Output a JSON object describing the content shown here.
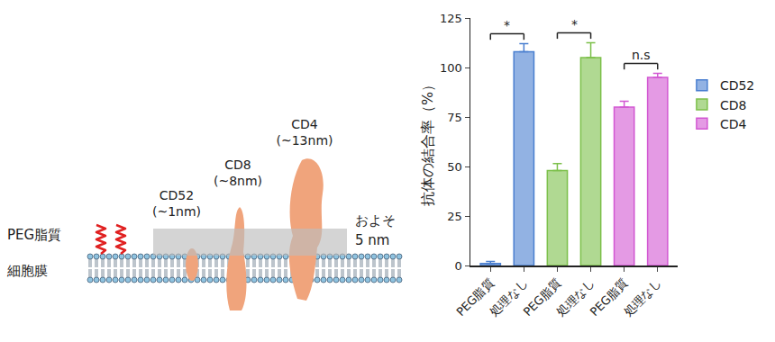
{
  "diagram": {
    "peg_label": "PEG脂質",
    "membrane_label": "細胞膜",
    "band_label": [
      "およそ",
      "5 nm"
    ],
    "proteins": [
      {
        "name": "CD52",
        "size": "(~1nm)"
      },
      {
        "name": "CD8",
        "size": "(~8nm)"
      },
      {
        "name": "CD4",
        "size": "(~13nm)"
      }
    ]
  },
  "chart_data": {
    "type": "bar",
    "categories": [
      "PEG脂質",
      "処理なし",
      "PEG脂質",
      "処理なし",
      "PEG脂質",
      "処理なし"
    ],
    "y_label": "抗体の結合率（%）",
    "ylim": [
      0,
      125
    ],
    "yticks": [
      0,
      25,
      50,
      75,
      100,
      125
    ],
    "grid": false,
    "legend": "right",
    "series": [
      {
        "name": "CD52",
        "color": "#4a7fd0",
        "values": [
          1,
          108,
          null,
          null,
          null,
          null
        ],
        "errors": [
          1,
          4,
          null,
          null,
          null,
          null
        ]
      },
      {
        "name": "CD8",
        "color": "#7cc04a",
        "values": [
          null,
          null,
          48,
          105,
          null,
          null
        ],
        "errors": [
          null,
          null,
          3.5,
          7.5,
          null,
          null
        ]
      },
      {
        "name": "CD4",
        "color": "#d257d2",
        "values": [
          null,
          null,
          null,
          null,
          80,
          95
        ],
        "errors": [
          null,
          null,
          null,
          null,
          3,
          2
        ]
      }
    ],
    "significance": [
      {
        "between": [
          0,
          1
        ],
        "label": "*"
      },
      {
        "between": [
          2,
          3
        ],
        "label": "*"
      },
      {
        "between": [
          4,
          5
        ],
        "label": "n.s"
      }
    ]
  }
}
